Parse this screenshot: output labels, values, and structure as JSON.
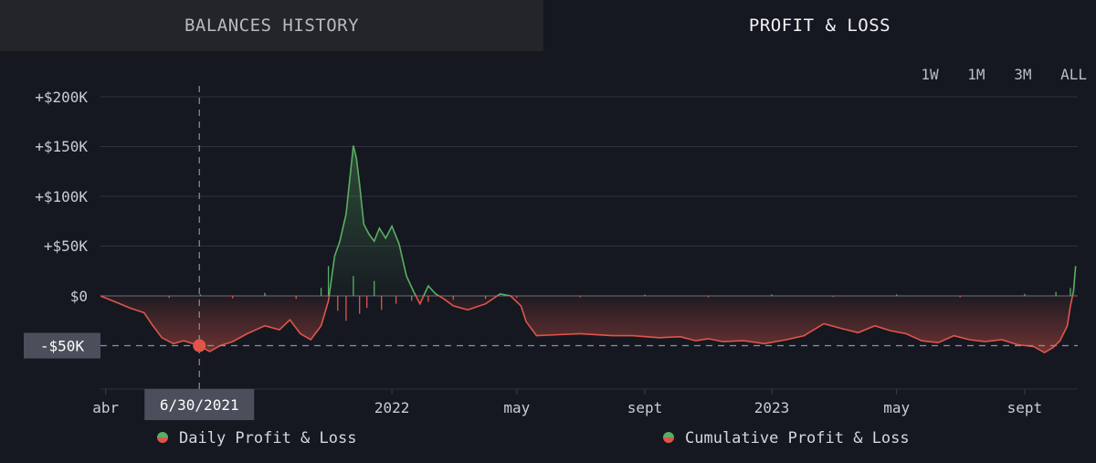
{
  "tabs": [
    {
      "label": "BALANCES HISTORY",
      "active": false
    },
    {
      "label": "PROFIT & LOSS",
      "active": true
    }
  ],
  "ranges": [
    "1W",
    "1M",
    "3M",
    "ALL"
  ],
  "colors": {
    "background": "#151820",
    "positive": "#5aad63",
    "negative": "#e0554a",
    "grid": "#2e323d",
    "axis_text": "#c9cdd6",
    "crosshair": "#8b91a0",
    "tooltip_bg": "#4a4f5b"
  },
  "chart_data": {
    "type": "line",
    "title": "",
    "xlabel": "",
    "ylabel": "",
    "y_ticks": [
      {
        "value": 200000,
        "label": "+$200K"
      },
      {
        "value": 150000,
        "label": "+$150K"
      },
      {
        "value": 100000,
        "label": "+$100K"
      },
      {
        "value": 50000,
        "label": "+$50K"
      },
      {
        "value": 0,
        "label": "$0"
      }
    ],
    "x_ticks": [
      {
        "date": "2021-04-01",
        "label": "abr"
      },
      {
        "date": "2022-01-01",
        "label": "2022"
      },
      {
        "date": "2022-05-01",
        "label": "may"
      },
      {
        "date": "2022-09-01",
        "label": "sept"
      },
      {
        "date": "2023-01-01",
        "label": "2023"
      },
      {
        "date": "2023-05-01",
        "label": "may"
      },
      {
        "date": "2023-09-01",
        "label": "sept"
      }
    ],
    "x_range": [
      "2021-03-27",
      "2023-10-22"
    ],
    "ylim": [
      -82000,
      210000
    ],
    "grid": true,
    "legend_position": "bottom",
    "crosshair": {
      "date": "2021-06-30",
      "value": -50000,
      "value_label": "-$50K",
      "date_label": "6/30/2021"
    },
    "series": [
      {
        "name": "Daily Profit & Loss",
        "style": "bars",
        "points": [
          [
            "2021-06-01",
            -2000
          ],
          [
            "2021-07-01",
            1500
          ],
          [
            "2021-08-01",
            -2500
          ],
          [
            "2021-09-01",
            3000
          ],
          [
            "2021-10-01",
            -3000
          ],
          [
            "2021-10-25",
            8000
          ],
          [
            "2021-11-01",
            30000
          ],
          [
            "2021-11-10",
            -15000
          ],
          [
            "2021-11-18",
            -25000
          ],
          [
            "2021-11-25",
            20000
          ],
          [
            "2021-12-01",
            -18000
          ],
          [
            "2021-12-08",
            -12000
          ],
          [
            "2021-12-15",
            15000
          ],
          [
            "2021-12-22",
            -14000
          ],
          [
            "2022-01-05",
            -8000
          ],
          [
            "2022-01-20",
            -5000
          ],
          [
            "2022-02-05",
            -6000
          ],
          [
            "2022-03-01",
            -4000
          ],
          [
            "2022-04-01",
            -3000
          ],
          [
            "2022-05-01",
            -2000
          ],
          [
            "2022-07-01",
            -1500
          ],
          [
            "2022-09-01",
            1200
          ],
          [
            "2022-11-01",
            -1500
          ],
          [
            "2023-01-01",
            1500
          ],
          [
            "2023-03-01",
            -1200
          ],
          [
            "2023-05-01",
            1500
          ],
          [
            "2023-07-01",
            -1500
          ],
          [
            "2023-09-01",
            2000
          ],
          [
            "2023-10-01",
            4000
          ],
          [
            "2023-10-15",
            8000
          ]
        ]
      },
      {
        "name": "Cumulative Profit & Loss",
        "style": "area",
        "points": [
          [
            "2021-03-27",
            0
          ],
          [
            "2021-04-10",
            -6000
          ],
          [
            "2021-04-24",
            -12000
          ],
          [
            "2021-05-08",
            -17000
          ],
          [
            "2021-05-15",
            -28000
          ],
          [
            "2021-05-25",
            -42000
          ],
          [
            "2021-06-05",
            -48000
          ],
          [
            "2021-06-15",
            -45000
          ],
          [
            "2021-06-30",
            -50000
          ],
          [
            "2021-07-10",
            -56000
          ],
          [
            "2021-07-20",
            -50000
          ],
          [
            "2021-08-01",
            -46000
          ],
          [
            "2021-08-15",
            -38000
          ],
          [
            "2021-09-01",
            -30000
          ],
          [
            "2021-09-15",
            -34000
          ],
          [
            "2021-09-25",
            -24000
          ],
          [
            "2021-10-05",
            -38000
          ],
          [
            "2021-10-15",
            -44000
          ],
          [
            "2021-10-25",
            -30000
          ],
          [
            "2021-11-01",
            -5000
          ],
          [
            "2021-11-07",
            40000
          ],
          [
            "2021-11-12",
            55000
          ],
          [
            "2021-11-18",
            82000
          ],
          [
            "2021-11-22",
            122000
          ],
          [
            "2021-11-25",
            151000
          ],
          [
            "2021-11-28",
            138000
          ],
          [
            "2021-12-01",
            112000
          ],
          [
            "2021-12-05",
            72000
          ],
          [
            "2021-12-10",
            62000
          ],
          [
            "2021-12-15",
            55000
          ],
          [
            "2021-12-20",
            68000
          ],
          [
            "2021-12-26",
            58000
          ],
          [
            "2022-01-01",
            70000
          ],
          [
            "2022-01-08",
            52000
          ],
          [
            "2022-01-15",
            20000
          ],
          [
            "2022-01-22",
            4000
          ],
          [
            "2022-01-28",
            -8000
          ],
          [
            "2022-02-05",
            10000
          ],
          [
            "2022-02-12",
            2000
          ],
          [
            "2022-02-20",
            -3000
          ],
          [
            "2022-03-01",
            -10000
          ],
          [
            "2022-03-15",
            -14000
          ],
          [
            "2022-04-01",
            -8000
          ],
          [
            "2022-04-15",
            2000
          ],
          [
            "2022-04-25",
            0
          ],
          [
            "2022-05-05",
            -10000
          ],
          [
            "2022-05-10",
            -26000
          ],
          [
            "2022-05-20",
            -40000
          ],
          [
            "2022-06-10",
            -39000
          ],
          [
            "2022-07-01",
            -38000
          ],
          [
            "2022-08-01",
            -40000
          ],
          [
            "2022-08-20",
            -40000
          ],
          [
            "2022-09-15",
            -42000
          ],
          [
            "2022-10-05",
            -41000
          ],
          [
            "2022-10-20",
            -45000
          ],
          [
            "2022-11-01",
            -43000
          ],
          [
            "2022-11-15",
            -46000
          ],
          [
            "2022-12-05",
            -45000
          ],
          [
            "2022-12-25",
            -48000
          ],
          [
            "2023-01-15",
            -44000
          ],
          [
            "2023-02-01",
            -40000
          ],
          [
            "2023-02-20",
            -28000
          ],
          [
            "2023-03-10",
            -33000
          ],
          [
            "2023-03-25",
            -37000
          ],
          [
            "2023-04-10",
            -30000
          ],
          [
            "2023-04-25",
            -35000
          ],
          [
            "2023-05-10",
            -38000
          ],
          [
            "2023-05-25",
            -45000
          ],
          [
            "2023-06-10",
            -47000
          ],
          [
            "2023-06-25",
            -40000
          ],
          [
            "2023-07-10",
            -44000
          ],
          [
            "2023-07-25",
            -46000
          ],
          [
            "2023-08-10",
            -44000
          ],
          [
            "2023-08-25",
            -49000
          ],
          [
            "2023-09-10",
            -51000
          ],
          [
            "2023-09-20",
            -57000
          ],
          [
            "2023-09-28",
            -52000
          ],
          [
            "2023-10-05",
            -45000
          ],
          [
            "2023-10-12",
            -30000
          ],
          [
            "2023-10-15",
            -10000
          ],
          [
            "2023-10-18",
            5000
          ],
          [
            "2023-10-20",
            30000
          ]
        ]
      }
    ]
  }
}
